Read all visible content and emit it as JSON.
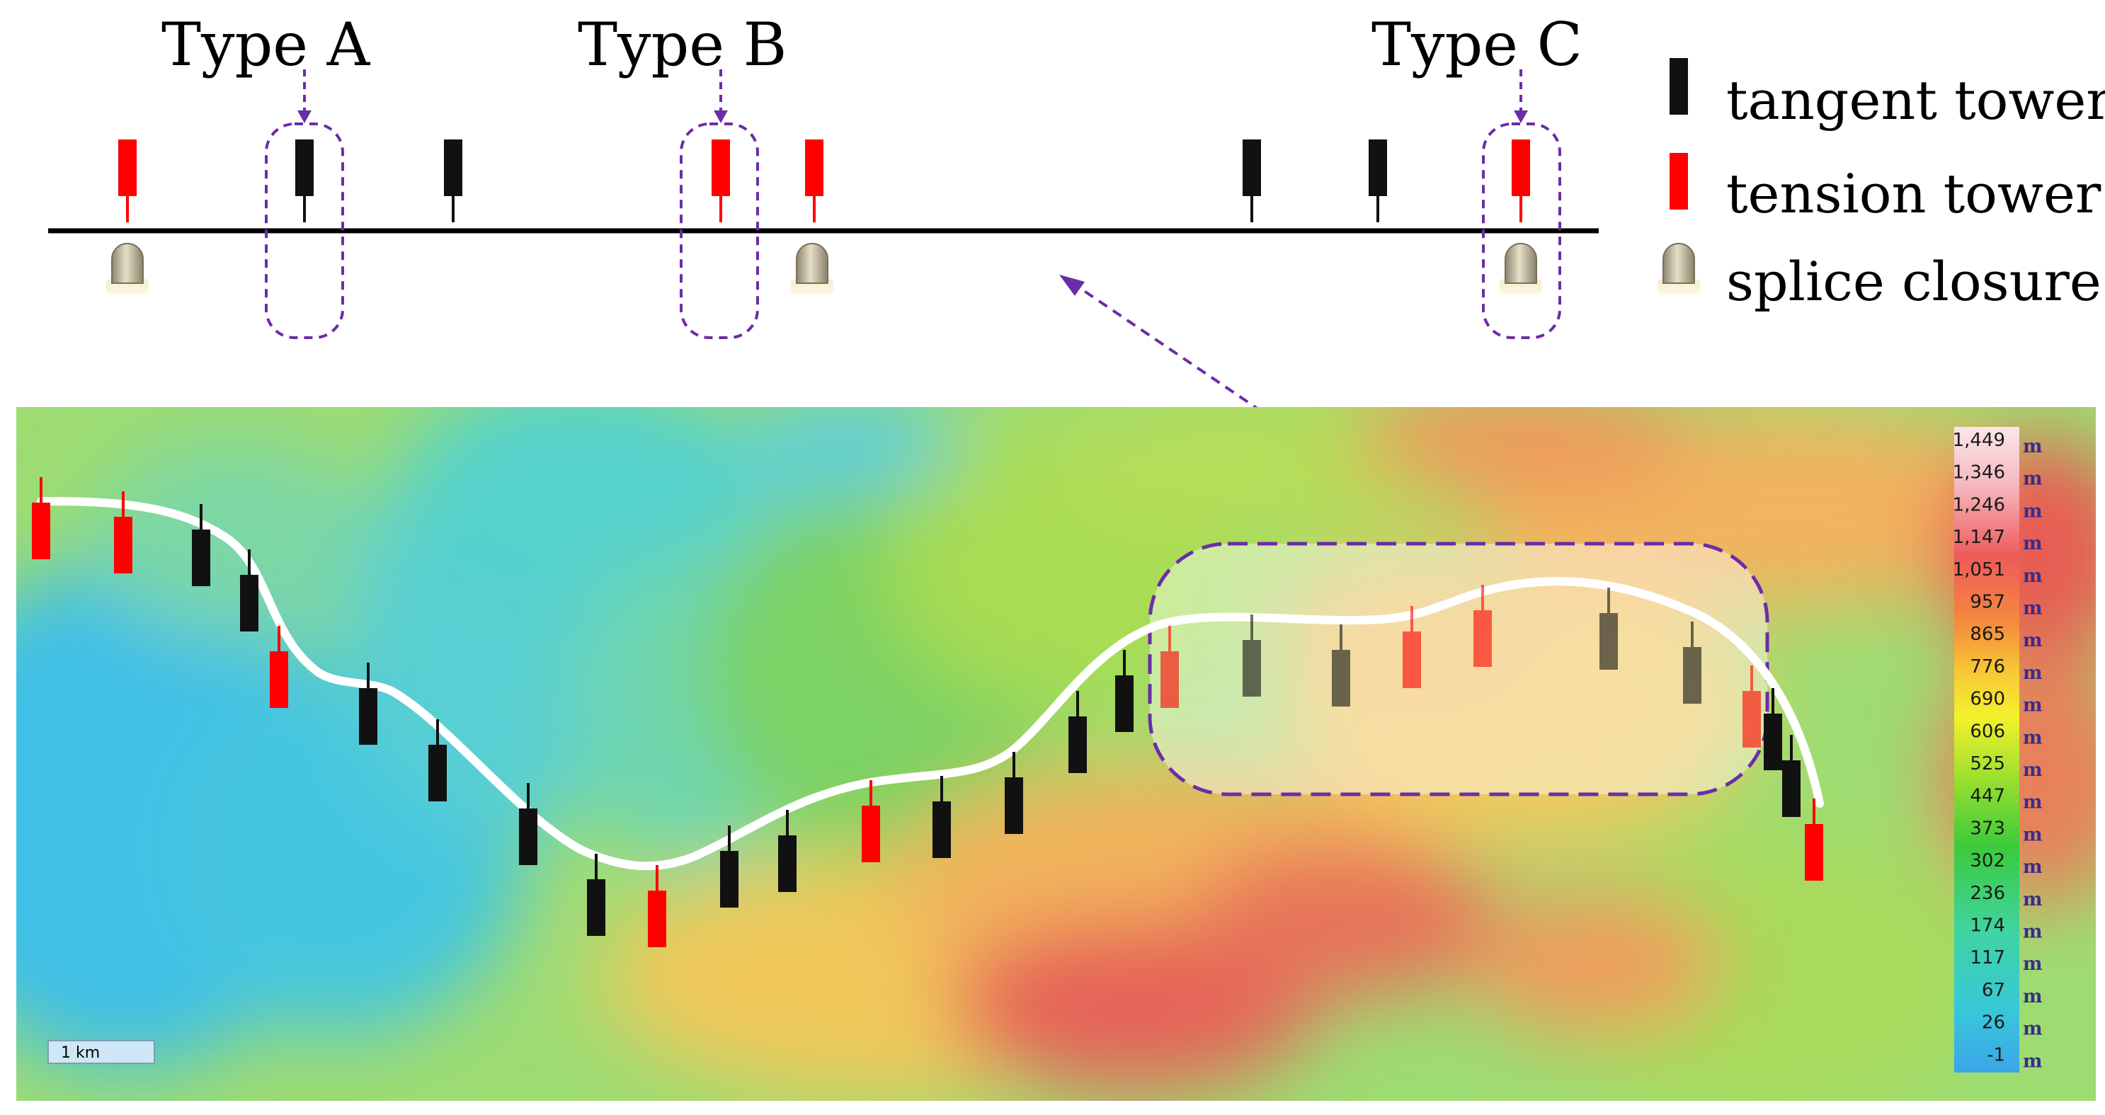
{
  "diagram": {
    "type_labels": [
      "Type A",
      "Type B",
      "Type C"
    ],
    "legend": {
      "tangent": "tangent tower",
      "tension": "tension tower",
      "splice": "splice closure"
    },
    "scale_bar": "1 km",
    "colorbar": {
      "unit": "m",
      "values": [
        "1,449",
        "1,346",
        "1,246",
        "1,147",
        "1,051",
        "957",
        "865",
        "776",
        "690",
        "606",
        "525",
        "447",
        "373",
        "302",
        "236",
        "174",
        "117",
        "67",
        "26",
        "-1"
      ]
    },
    "colors": {
      "tangent": "#111111",
      "tension": "#ff0000",
      "callout": "#6a2da8",
      "route": "#ffffff"
    }
  }
}
